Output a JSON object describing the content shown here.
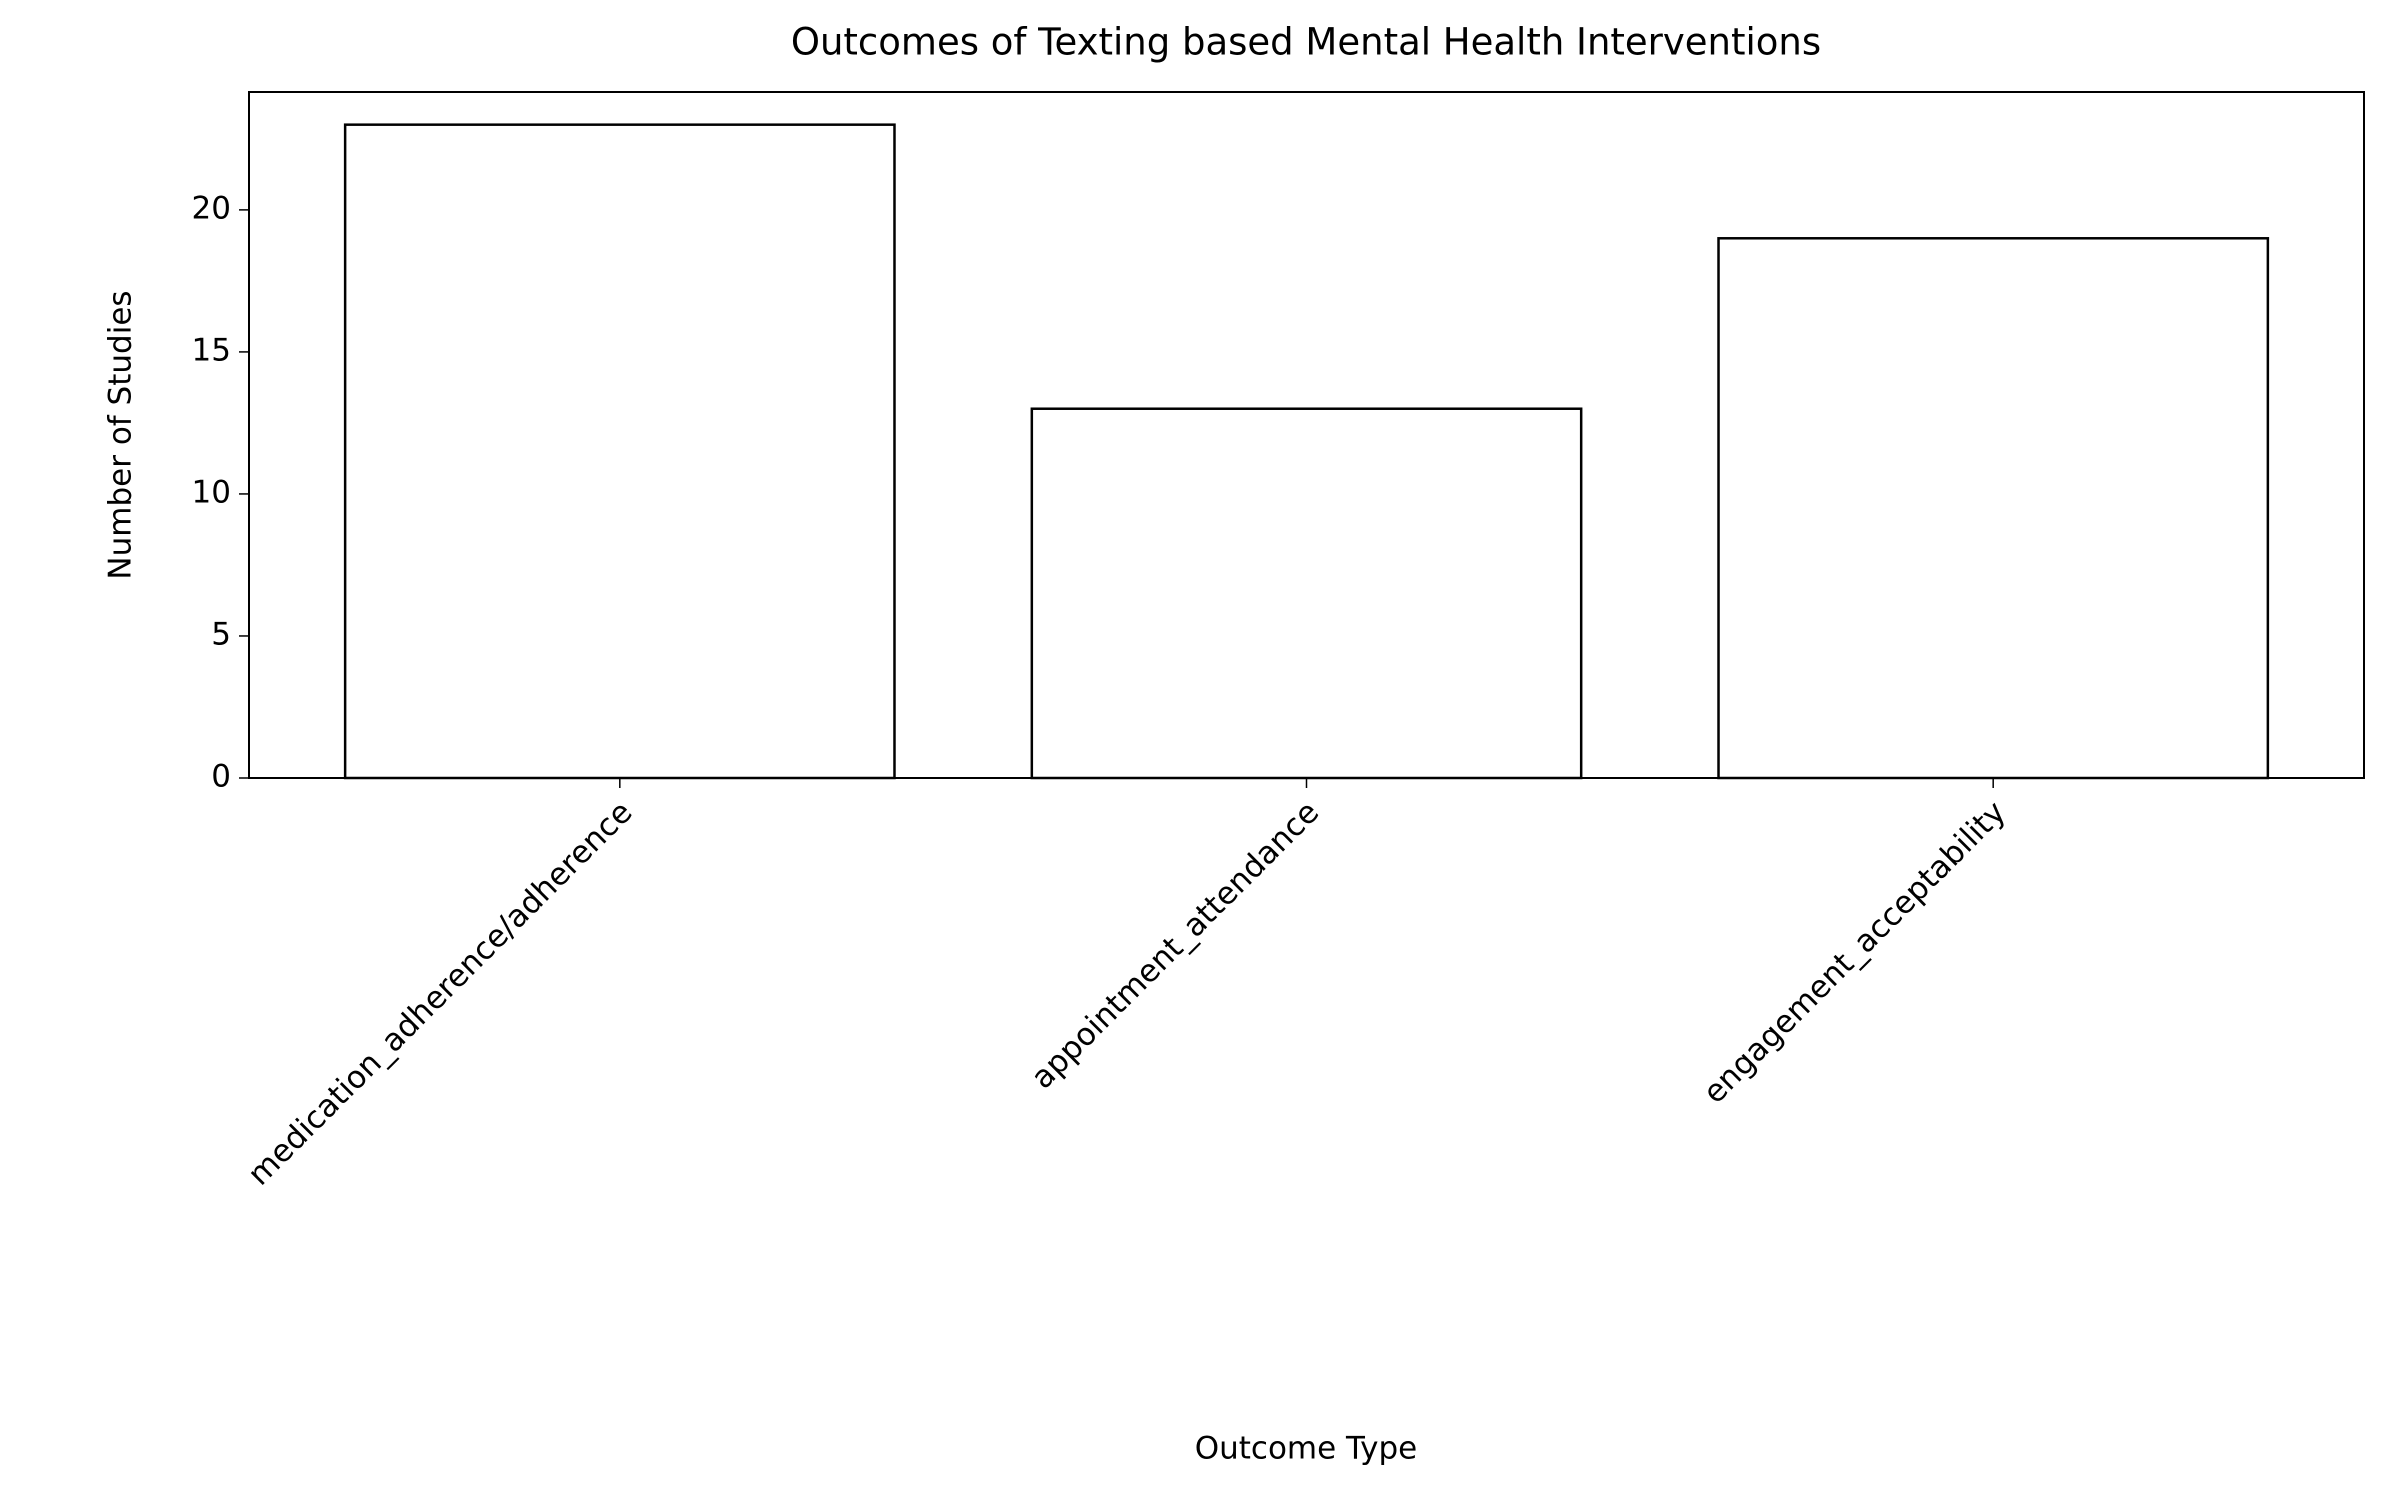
{
  "chart_data": {
    "type": "bar",
    "title": "Outcomes of Texting based Mental Health Interventions",
    "x_label": "Outcome Type",
    "y_label": "Number of Studies",
    "categories": [
      "medication_adherence/adherence",
      "appointment_attendance",
      "engagement_acceptability"
    ],
    "values": [
      23,
      13,
      19
    ],
    "color": "#ffffff",
    "edgecolor": "#000000",
    "ylim": [
      0,
      24.15
    ],
    "yticks": [
      0,
      5,
      10,
      15,
      20
    ],
    "grid": false
  }
}
